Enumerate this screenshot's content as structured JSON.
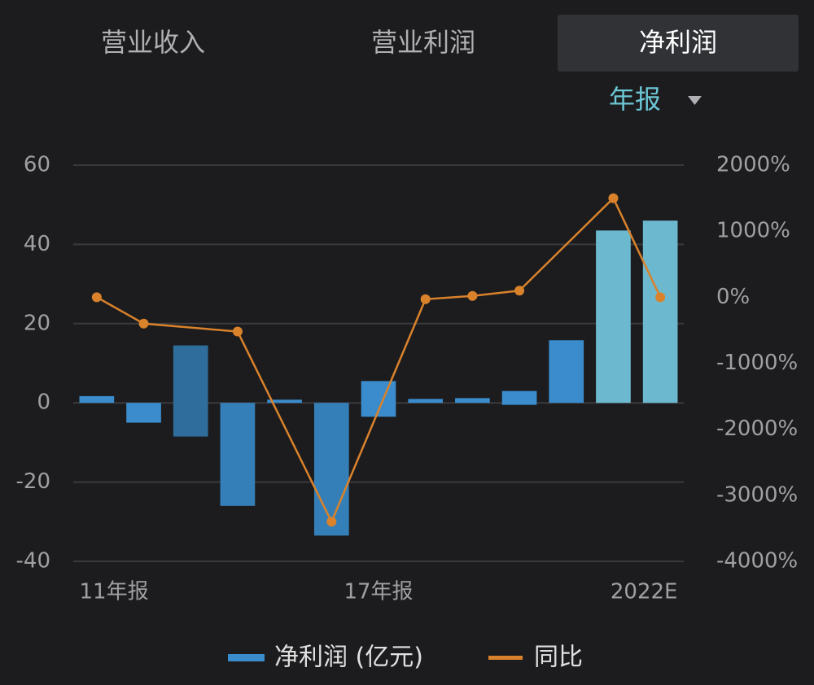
{
  "tabs": [
    "营业收入",
    "营业利润",
    "净利润"
  ],
  "period": "年报",
  "chart_data": {
    "type": "bar",
    "categories": [
      "11年报",
      null,
      null,
      null,
      null,
      null,
      "17年报",
      null,
      null,
      null,
      null,
      null,
      "2022E"
    ],
    "series": [
      {
        "name": "净利润 (亿元)",
        "color": "#3a8ccc",
        "values": [
          [
            0,
            1.7
          ],
          [
            -5,
            0
          ],
          [
            -8.5,
            14.5
          ],
          [
            -26,
            0
          ],
          [
            0,
            0.8
          ],
          [
            -33.5,
            0
          ],
          [
            -3.5,
            5.5
          ],
          [
            0,
            1
          ],
          [
            0,
            1.2
          ],
          [
            -0.5,
            3
          ],
          [
            0,
            15.8
          ],
          [
            0,
            43.5
          ],
          [
            0,
            46
          ]
        ],
        "bar_colors": [
          "#3a8ccc",
          "#3a8ccc",
          "#2f6e9c",
          "#357fb8",
          "#3a8ccc",
          "#357fb8",
          "#3a8ccc",
          "#3a8ccc",
          "#3a8ccc",
          "#3a8ccc",
          "#3a8ccc",
          "#6cb9cf",
          "#6cb9cf"
        ]
      },
      {
        "name": "同比",
        "color": "#d9822b",
        "type": "line",
        "axis": "y2",
        "x": [
          0,
          1,
          3,
          5,
          7,
          8,
          9,
          11,
          12
        ],
        "values": [
          0,
          -400,
          -520,
          -3400,
          -30,
          20,
          100,
          1500,
          0
        ]
      }
    ],
    "ylim": [
      -40,
      60
    ],
    "yticks": [
      -40,
      -20,
      0,
      20,
      40,
      60
    ],
    "y2lim": [
      -4000,
      2000
    ],
    "y2ticks": [
      {
        "value": -4000,
        "label": "-4000%"
      },
      {
        "value": -3000,
        "label": "-3000%"
      },
      {
        "value": -2000,
        "label": "-2000%"
      },
      {
        "value": -1000,
        "label": "-1000%"
      },
      {
        "value": 0,
        "label": "0%"
      },
      {
        "value": 1000,
        "label": "1000%"
      },
      {
        "value": 2000,
        "label": "2000%"
      }
    ],
    "grid": true
  }
}
